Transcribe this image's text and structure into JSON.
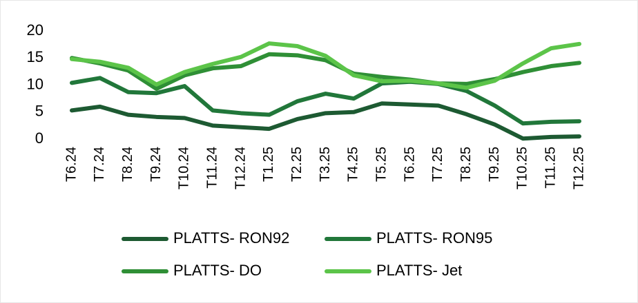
{
  "chart_data": {
    "type": "line",
    "categories": [
      "T6.24",
      "T7.24",
      "T8.24",
      "T9.24",
      "T10.24",
      "T11.24",
      "T12.24",
      "T1.25",
      "T2.25",
      "T3.25",
      "T4.25",
      "T5.25",
      "T6.25",
      "T7.25",
      "T8.25",
      "T9.25",
      "T10.25",
      "T11.25",
      "T12.25"
    ],
    "series": [
      {
        "name": "PLATTS- RON92",
        "color": "#1d5a32",
        "values": [
          5.3,
          6.0,
          4.5,
          4.1,
          3.9,
          2.5,
          2.2,
          1.9,
          3.7,
          4.8,
          5.0,
          6.6,
          6.4,
          6.2,
          4.6,
          2.7,
          0.1,
          0.4,
          0.5
        ]
      },
      {
        "name": "PLATTS- RON95",
        "color": "#21773a",
        "values": [
          10.4,
          11.3,
          8.7,
          8.5,
          9.8,
          5.3,
          4.8,
          4.5,
          7.0,
          8.4,
          7.5,
          10.3,
          10.6,
          10.2,
          8.9,
          6.2,
          2.9,
          3.2,
          3.3
        ]
      },
      {
        "name": "PLATTS- DO",
        "color": "#2f8f36",
        "values": [
          15.0,
          14.0,
          12.7,
          9.3,
          11.8,
          13.1,
          13.5,
          15.7,
          15.5,
          14.6,
          12.1,
          11.5,
          11.0,
          10.3,
          10.2,
          11.1,
          12.4,
          13.5,
          14.1
        ]
      },
      {
        "name": "PLATTS- Jet",
        "color": "#5cc449",
        "values": [
          14.8,
          14.3,
          13.2,
          10.1,
          12.4,
          13.9,
          15.2,
          17.7,
          17.2,
          15.4,
          11.8,
          10.7,
          10.8,
          10.3,
          9.5,
          10.8,
          14.0,
          16.8,
          17.6
        ]
      }
    ],
    "ylim": [
      0,
      20
    ],
    "yticks": [
      0,
      5,
      10,
      15,
      20
    ],
    "grid": false
  }
}
